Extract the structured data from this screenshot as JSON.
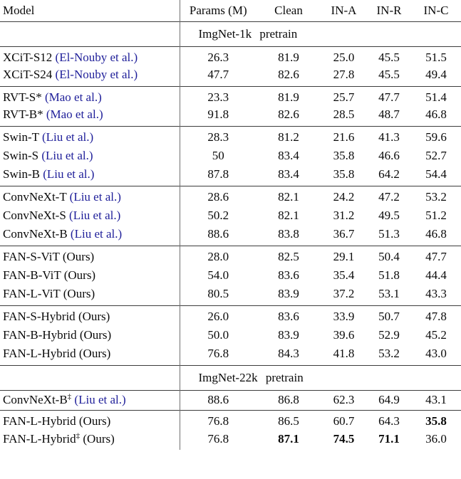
{
  "colors": {
    "link_blue": "#1e1e99",
    "text": "#0a0a0a",
    "rule_gray": "#3d3d3d",
    "vline_gray": "#707070",
    "background": "#ffffff"
  },
  "table": {
    "columns": [
      "Model",
      "Params (M)",
      "Clean",
      "IN-A",
      "IN-R",
      "IN-C"
    ],
    "sections": [
      {
        "title": "ImgNet-1k pretrain",
        "groups": [
          [
            {
              "model": "XCiT-S12",
              "sup": "",
              "ref": "(El-Nouby et al.)",
              "ref_link": true,
              "values": [
                "26.3",
                "81.9",
                "25.0",
                "45.5",
                "51.5"
              ],
              "bold": []
            },
            {
              "model": "XCiT-S24",
              "sup": "",
              "ref": "(El-Nouby et al.)",
              "ref_link": true,
              "values": [
                "47.7",
                "82.6",
                "27.8",
                "45.5",
                "49.4"
              ],
              "bold": []
            }
          ],
          [
            {
              "model": "RVT-S*",
              "sup": "",
              "ref": "(Mao et al.)",
              "ref_link": true,
              "values": [
                "23.3",
                "81.9",
                "25.7",
                "47.7",
                "51.4"
              ],
              "bold": []
            },
            {
              "model": "RVT-B*",
              "sup": "",
              "ref": "(Mao et al.)",
              "ref_link": true,
              "values": [
                "91.8",
                "82.6",
                "28.5",
                "48.7",
                "46.8"
              ],
              "bold": []
            }
          ],
          [
            {
              "model": "Swin-T",
              "sup": "",
              "ref": "(Liu et al.)",
              "ref_link": true,
              "values": [
                "28.3",
                "81.2",
                "21.6",
                "41.3",
                "59.6"
              ],
              "bold": []
            },
            {
              "model": "Swin-S",
              "sup": "",
              "ref": "(Liu et al.)",
              "ref_link": true,
              "values": [
                "50",
                "83.4",
                "35.8",
                "46.6",
                "52.7"
              ],
              "bold": []
            },
            {
              "model": "Swin-B",
              "sup": "",
              "ref": "(Liu et al.)",
              "ref_link": true,
              "values": [
                "87.8",
                "83.4",
                "35.8",
                "64.2",
                "54.4"
              ],
              "bold": []
            }
          ],
          [
            {
              "model": "ConvNeXt-T",
              "sup": "",
              "ref": "(Liu et al.)",
              "ref_link": true,
              "values": [
                "28.6",
                "82.1",
                "24.2",
                "47.2",
                "53.2"
              ],
              "bold": []
            },
            {
              "model": "ConvNeXt-S",
              "sup": "",
              "ref": "(Liu et al.)",
              "ref_link": true,
              "values": [
                "50.2",
                "82.1",
                "31.2",
                "49.5",
                "51.2"
              ],
              "bold": []
            },
            {
              "model": "ConvNeXt-B",
              "sup": "",
              "ref": "(Liu et al.)",
              "ref_link": true,
              "values": [
                "88.6",
                "83.8",
                "36.7",
                "51.3",
                "46.8"
              ],
              "bold": []
            }
          ],
          [
            {
              "model": "FAN-S-ViT",
              "sup": "",
              "ref": "(Ours)",
              "ref_link": false,
              "values": [
                "28.0",
                "82.5",
                "29.1",
                "50.4",
                "47.7"
              ],
              "bold": []
            },
            {
              "model": "FAN-B-ViT",
              "sup": "",
              "ref": "(Ours)",
              "ref_link": false,
              "values": [
                "54.0",
                "83.6",
                "35.4",
                "51.8",
                "44.4"
              ],
              "bold": []
            },
            {
              "model": "FAN-L-ViT",
              "sup": "",
              "ref": "(Ours)",
              "ref_link": false,
              "values": [
                "80.5",
                "83.9",
                "37.2",
                "53.1",
                "43.3"
              ],
              "bold": []
            }
          ],
          [
            {
              "model": "FAN-S-Hybrid",
              "sup": "",
              "ref": "(Ours)",
              "ref_link": false,
              "values": [
                "26.0",
                "83.6",
                "33.9",
                "50.7",
                "47.8"
              ],
              "bold": []
            },
            {
              "model": "FAN-B-Hybrid",
              "sup": "",
              "ref": "(Ours)",
              "ref_link": false,
              "values": [
                "50.0",
                "83.9",
                "39.6",
                "52.9",
                "45.2"
              ],
              "bold": []
            },
            {
              "model": "FAN-L-Hybrid",
              "sup": "",
              "ref": "(Ours)",
              "ref_link": false,
              "values": [
                "76.8",
                "84.3",
                "41.8",
                "53.2",
                "43.0"
              ],
              "bold": []
            }
          ]
        ]
      },
      {
        "title": "ImgNet-22k pretrain",
        "groups": [
          [
            {
              "model": "ConvNeXt-B",
              "sup": "‡",
              "ref": "(Liu et al.)",
              "ref_link": true,
              "values": [
                "88.6",
                "86.8",
                "62.3",
                "64.9",
                "43.1"
              ],
              "bold": []
            }
          ],
          [
            {
              "model": "FAN-L-Hybrid",
              "sup": "",
              "ref": "(Ours)",
              "ref_link": false,
              "values": [
                "76.8",
                "86.5",
                "60.7",
                "64.3",
                "35.8"
              ],
              "bold": [
                4
              ]
            },
            {
              "model": "FAN-L-Hybrid",
              "sup": "‡",
              "ref": "(Ours)",
              "ref_link": false,
              "values": [
                "76.8",
                "87.1",
                "74.5",
                "71.1",
                "36.0"
              ],
              "bold": [
                1,
                2,
                3
              ]
            }
          ]
        ]
      }
    ]
  }
}
